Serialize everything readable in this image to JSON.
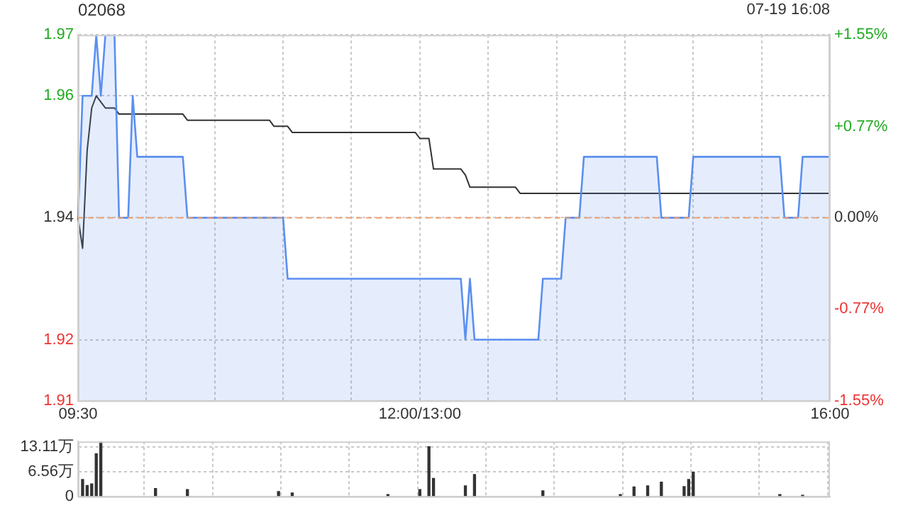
{
  "chart_data": [
    {
      "type": "line",
      "title": "02068",
      "annotations": [
        "07-19 16:08"
      ],
      "categories": [
        "09:30",
        null,
        null,
        null,
        null,
        null,
        null,
        null,
        null,
        null,
        null,
        null,
        null,
        null,
        null,
        null,
        null,
        null,
        null,
        null,
        null,
        null,
        null,
        null,
        null,
        null,
        null,
        null,
        null,
        null,
        null,
        null,
        null,
        null,
        null,
        null,
        null,
        null,
        null,
        null,
        null,
        null,
        null,
        null,
        null,
        null,
        null,
        null,
        null,
        null,
        null,
        null,
        null,
        null,
        null,
        null,
        null,
        null,
        null,
        null,
        null,
        null,
        null,
        null,
        null,
        null,
        null,
        null,
        null,
        null,
        null,
        null,
        null,
        null,
        null,
        "12:00/13:00",
        null,
        null,
        null,
        null,
        null,
        null,
        null,
        null,
        null,
        null,
        null,
        null,
        null,
        null,
        null,
        null,
        null,
        null,
        null,
        null,
        null,
        null,
        null,
        null,
        null,
        null,
        null,
        null,
        null,
        null,
        null,
        null,
        null,
        null,
        null,
        null,
        null,
        null,
        null,
        null,
        null,
        null,
        null,
        null,
        null,
        null,
        null,
        null,
        null,
        null,
        null,
        null,
        null,
        null,
        null,
        null,
        null,
        null,
        null,
        null,
        null,
        null,
        null,
        null,
        null,
        null,
        null,
        null,
        null,
        null,
        null,
        null,
        null,
        null,
        null,
        null,
        null,
        null,
        null,
        null,
        null,
        null,
        null,
        null,
        null,
        null,
        null,
        null,
        null,
        "16:00"
      ],
      "ylim": [
        1.91,
        1.97
      ],
      "yticks": [
        1.97,
        1.96,
        1.94,
        1.92,
        1.91
      ],
      "y2lim": [
        -1.55,
        1.55
      ],
      "y2ticks": [
        {
          "value": 1.55,
          "label": "+1.55%"
        },
        {
          "value": 0.77,
          "label": "+0.77%"
        },
        {
          "value": 0,
          "label": "0.00%"
        },
        {
          "value": -0.77,
          "label": "-0.77%"
        },
        {
          "value": -1.55,
          "label": "-1.55%"
        }
      ],
      "grid": true,
      "legend": false,
      "marker": "none",
      "ref_lines": [
        {
          "axis": "y",
          "value": 1.94,
          "color": "#f0a070",
          "line_style": "dashed"
        }
      ],
      "series": [
        {
          "type": "area",
          "color": "#5b8ff0",
          "values": [
            1.94,
            1.96,
            1.96,
            1.96,
            1.97,
            1.96,
            1.97,
            1.97,
            1.97,
            1.94,
            1.94,
            1.94,
            1.96,
            1.95,
            1.95,
            1.95,
            1.95,
            1.95,
            1.95,
            1.95,
            1.95,
            1.95,
            1.95,
            1.95,
            1.94,
            1.94,
            1.94,
            1.94,
            1.94,
            1.94,
            1.94,
            1.94,
            1.94,
            1.94,
            1.94,
            1.94,
            1.94,
            1.94,
            1.94,
            1.94,
            1.94,
            1.94,
            1.94,
            1.94,
            1.94,
            1.94,
            1.93,
            1.93,
            1.93,
            1.93,
            1.93,
            1.93,
            1.93,
            1.93,
            1.93,
            1.93,
            1.93,
            1.93,
            1.93,
            1.93,
            1.93,
            1.93,
            1.93,
            1.93,
            1.93,
            1.93,
            1.93,
            1.93,
            1.93,
            1.93,
            1.93,
            1.93,
            1.93,
            1.93,
            1.93,
            1.93,
            1.93,
            1.93,
            1.93,
            1.93,
            1.93,
            1.93,
            1.93,
            1.93,
            1.93,
            1.92,
            1.93,
            1.92,
            1.92,
            1.92,
            1.92,
            1.92,
            1.92,
            1.92,
            1.92,
            1.92,
            1.92,
            1.92,
            1.92,
            1.92,
            1.92,
            1.92,
            1.93,
            1.93,
            1.93,
            1.93,
            1.93,
            1.94,
            1.94,
            1.94,
            1.94,
            1.95,
            1.95,
            1.95,
            1.95,
            1.95,
            1.95,
            1.95,
            1.95,
            1.95,
            1.95,
            1.95,
            1.95,
            1.95,
            1.95,
            1.95,
            1.95,
            1.95,
            1.94,
            1.94,
            1.94,
            1.94,
            1.94,
            1.94,
            1.94,
            1.95,
            1.95,
            1.95,
            1.95,
            1.95,
            1.95,
            1.95,
            1.95,
            1.95,
            1.95,
            1.95,
            1.95,
            1.95,
            1.95,
            1.95,
            1.95,
            1.95,
            1.95,
            1.95,
            1.95,
            1.94,
            1.94,
            1.94,
            1.94,
            1.95,
            1.95,
            1.95,
            1.95,
            1.95,
            1.95,
            1.95
          ]
        },
        {
          "type": "line",
          "color": "#333333",
          "values": [
            1.94,
            1.935,
            1.951,
            1.958,
            1.96,
            1.959,
            1.958,
            1.958,
            1.958,
            1.957,
            1.957,
            1.957,
            1.957,
            1.957,
            1.957,
            1.957,
            1.957,
            1.957,
            1.957,
            1.957,
            1.957,
            1.957,
            1.957,
            1.957,
            1.956,
            1.956,
            1.956,
            1.956,
            1.956,
            1.956,
            1.956,
            1.956,
            1.956,
            1.956,
            1.956,
            1.956,
            1.956,
            1.956,
            1.956,
            1.956,
            1.956,
            1.956,
            1.956,
            1.955,
            1.955,
            1.955,
            1.955,
            1.954,
            1.954,
            1.954,
            1.954,
            1.954,
            1.954,
            1.954,
            1.954,
            1.954,
            1.954,
            1.954,
            1.954,
            1.954,
            1.954,
            1.954,
            1.954,
            1.954,
            1.954,
            1.954,
            1.954,
            1.954,
            1.954,
            1.954,
            1.954,
            1.954,
            1.954,
            1.954,
            1.954,
            1.953,
            1.953,
            1.953,
            1.948,
            1.948,
            1.948,
            1.948,
            1.948,
            1.948,
            1.948,
            1.947,
            1.945,
            1.945,
            1.945,
            1.945,
            1.945,
            1.945,
            1.945,
            1.945,
            1.945,
            1.945,
            1.945,
            1.944,
            1.944,
            1.944,
            1.944,
            1.944,
            1.944,
            1.944,
            1.944,
            1.944,
            1.944,
            1.944,
            1.944,
            1.944,
            1.944,
            1.944,
            1.944,
            1.944,
            1.944,
            1.944,
            1.944,
            1.944,
            1.944,
            1.944,
            1.944,
            1.944,
            1.944,
            1.944,
            1.944,
            1.944,
            1.944,
            1.944,
            1.944,
            1.944,
            1.944,
            1.944,
            1.944,
            1.944,
            1.944,
            1.944,
            1.944,
            1.944,
            1.944,
            1.944,
            1.944,
            1.944,
            1.944,
            1.944,
            1.944,
            1.944,
            1.944,
            1.944,
            1.944,
            1.944,
            1.944,
            1.944,
            1.944,
            1.944,
            1.944,
            1.944,
            1.944,
            1.944,
            1.944,
            1.944,
            1.944,
            1.944,
            1.944,
            1.944,
            1.944,
            1.944
          ]
        }
      ]
    },
    {
      "type": "bar",
      "categories": [
        null,
        null,
        null,
        null,
        null,
        null,
        null,
        null,
        null,
        null,
        null,
        null,
        null,
        null,
        null,
        null,
        null,
        null,
        null,
        null,
        null,
        null,
        null,
        null,
        null,
        null,
        null,
        null,
        null,
        null,
        null,
        null,
        null,
        null,
        null,
        null,
        null,
        null,
        null,
        null,
        null,
        null,
        null,
        null,
        null,
        null,
        null,
        null,
        null,
        null,
        null,
        null,
        null,
        null,
        null,
        null,
        null,
        null,
        null,
        null,
        null,
        null,
        null,
        null,
        null,
        null,
        null,
        null,
        null,
        null,
        null,
        null,
        null,
        null,
        null,
        null,
        null,
        null,
        null,
        null,
        null,
        null,
        null,
        null,
        null,
        null,
        null,
        null,
        null,
        null,
        null,
        null,
        null,
        null,
        null,
        null,
        null,
        null,
        null,
        null,
        null,
        null,
        null,
        null,
        null,
        null,
        null,
        null,
        null,
        null,
        null,
        null,
        null,
        null,
        null,
        null,
        null,
        null,
        null,
        null,
        null,
        null,
        null,
        null,
        null,
        null,
        null,
        null,
        null,
        null,
        null,
        null,
        null,
        null,
        null,
        null,
        null,
        null,
        null,
        null,
        null,
        null,
        null,
        null,
        null,
        null,
        null,
        null,
        null,
        null,
        null,
        null,
        null,
        null,
        null,
        null,
        null,
        null,
        null,
        null,
        null,
        null,
        null,
        null,
        null,
        null
      ],
      "ylim": [
        0,
        14.6
      ],
      "yticks": [
        0,
        {
          "value": 6.56,
          "label": "6.56万"
        },
        {
          "value": 13.11,
          "label": "13.11万"
        }
      ],
      "grid": true,
      "legend": false,
      "tick_labels": "y",
      "series": [
        {
          "color": "#333333",
          "values": [
            null,
            4.5,
            2.9,
            3.3,
            11.3,
            14.6,
            null,
            null,
            null,
            null,
            null,
            null,
            null,
            null,
            null,
            null,
            null,
            2.1,
            null,
            null,
            null,
            null,
            null,
            null,
            1.8,
            null,
            null,
            null,
            null,
            null,
            null,
            null,
            null,
            null,
            null,
            null,
            null,
            null,
            null,
            null,
            null,
            null,
            null,
            null,
            1.3,
            null,
            null,
            0.9,
            null,
            null,
            null,
            null,
            null,
            null,
            null,
            null,
            null,
            null,
            null,
            null,
            null,
            null,
            null,
            null,
            null,
            null,
            null,
            null,
            0.5,
            null,
            null,
            null,
            null,
            null,
            null,
            1.8,
            null,
            13.2,
            4.8,
            null,
            null,
            null,
            null,
            null,
            null,
            2.8,
            null,
            5.8,
            null,
            null,
            null,
            null,
            null,
            null,
            null,
            null,
            null,
            null,
            null,
            null,
            null,
            null,
            1.5,
            null,
            null,
            null,
            null,
            null,
            null,
            null,
            null,
            null,
            null,
            null,
            null,
            null,
            null,
            null,
            null,
            0.5,
            null,
            null,
            2.5,
            null,
            null,
            2.8,
            null,
            null,
            3.8,
            null,
            null,
            null,
            null,
            2.6,
            4.5,
            6.4,
            null,
            null,
            null,
            null,
            null,
            null,
            null,
            null,
            null,
            null,
            null,
            null,
            null,
            null,
            null,
            null,
            null,
            null,
            0.5,
            null,
            null,
            null,
            null,
            0.3,
            null,
            null,
            null,
            null,
            null,
            null
          ]
        }
      ]
    }
  ]
}
